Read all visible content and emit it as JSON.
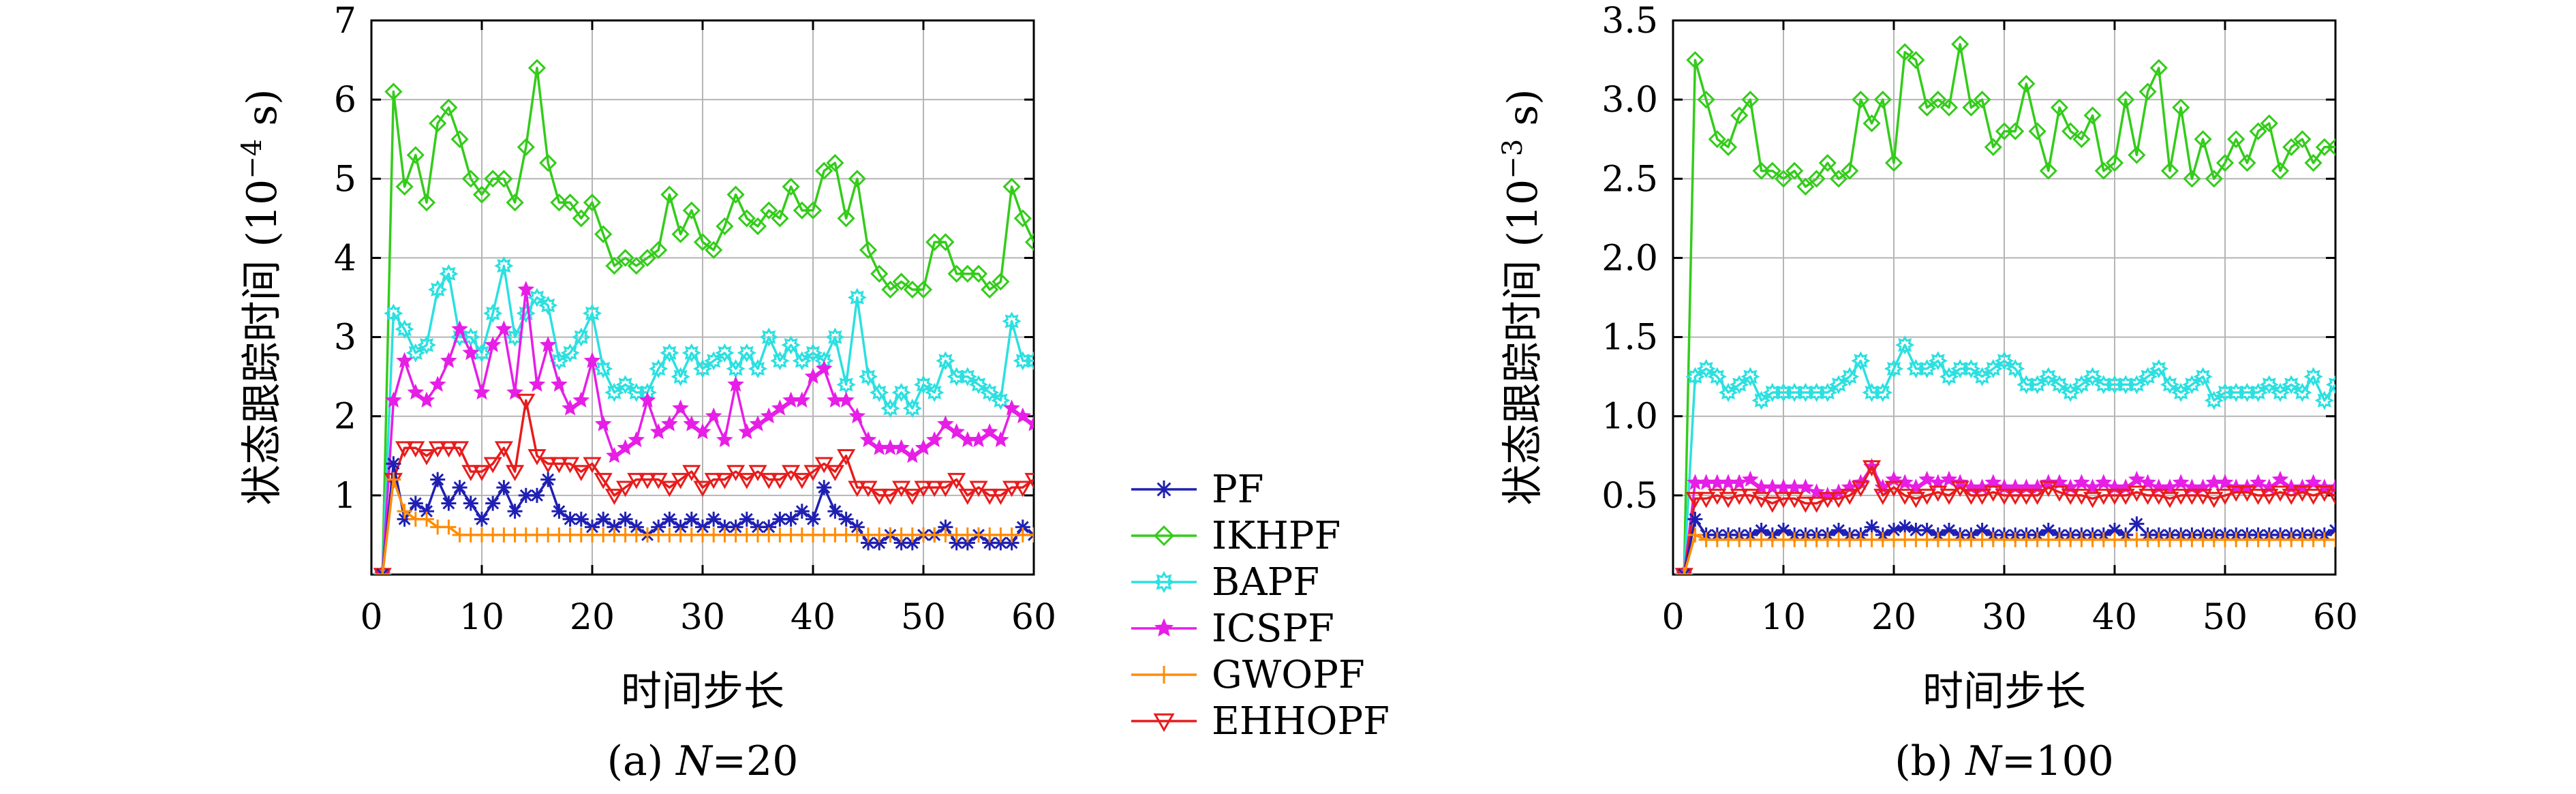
{
  "colors": {
    "PF": "#1f1fb4",
    "IKHPF": "#33cc1a",
    "BAPF": "#2ce0e0",
    "ICSPF": "#e61ee6",
    "GWOPF": "#ff8c00",
    "EHHOPF": "#e81c1c"
  },
  "legend": [
    {
      "name": "PF",
      "color": "#1f1fb4",
      "marker": "star"
    },
    {
      "name": "IKHPF",
      "color": "#33cc1a",
      "marker": "diamond"
    },
    {
      "name": "BAPF",
      "color": "#2ce0e0",
      "marker": "sun"
    },
    {
      "name": "ICSPF",
      "color": "#e61ee6",
      "marker": "star5"
    },
    {
      "name": "GWOPF",
      "color": "#ff8c00",
      "marker": "plus"
    },
    {
      "name": "EHHOPF",
      "color": "#e81c1c",
      "marker": "triangle-down"
    }
  ],
  "chart_data": [
    {
      "type": "line",
      "caption_prefix": "(a) ",
      "caption_var": "N",
      "caption_suffix": "=20",
      "xlabel": "时间步长",
      "ylabel_main": "状态跟踪时间 (10",
      "ylabel_exp": "−4",
      "ylabel_end": " s)",
      "xlim": [
        0,
        60
      ],
      "ylim": [
        0,
        7
      ],
      "xticks": [
        0,
        10,
        20,
        30,
        40,
        50,
        60
      ],
      "yticks": [
        1,
        2,
        3,
        4,
        5,
        6,
        7
      ],
      "xtick_labels": [
        "0",
        "10",
        "20",
        "30",
        "40",
        "50",
        "60"
      ],
      "ytick_labels": [
        "1",
        "2",
        "3",
        "4",
        "5",
        "6",
        "7"
      ],
      "grid": true,
      "x": [
        1,
        2,
        3,
        4,
        5,
        6,
        7,
        8,
        9,
        10,
        11,
        12,
        13,
        14,
        15,
        16,
        17,
        18,
        19,
        20,
        21,
        22,
        23,
        24,
        25,
        26,
        27,
        28,
        29,
        30,
        31,
        32,
        33,
        34,
        35,
        36,
        37,
        38,
        39,
        40,
        41,
        42,
        43,
        44,
        45,
        46,
        47,
        48,
        49,
        50,
        51,
        52,
        53,
        54,
        55,
        56,
        57,
        58,
        59,
        60
      ],
      "series": [
        {
          "name": "IKHPF",
          "values": [
            0,
            6.1,
            4.9,
            5.3,
            4.7,
            5.7,
            5.9,
            5.5,
            5.0,
            4.8,
            5.0,
            5.0,
            4.7,
            5.4,
            6.4,
            5.2,
            4.7,
            4.7,
            4.5,
            4.7,
            4.3,
            3.9,
            4.0,
            3.9,
            4.0,
            4.1,
            4.8,
            4.3,
            4.6,
            4.2,
            4.1,
            4.4,
            4.8,
            4.5,
            4.4,
            4.6,
            4.5,
            4.9,
            4.6,
            4.6,
            5.1,
            5.2,
            4.5,
            5.0,
            4.1,
            3.8,
            3.6,
            3.7,
            3.6,
            3.6,
            4.2,
            4.2,
            3.8,
            3.8,
            3.8,
            3.6,
            3.7,
            4.9,
            4.5,
            4.2
          ]
        },
        {
          "name": "BAPF",
          "values": [
            0,
            3.3,
            3.1,
            2.8,
            2.9,
            3.6,
            3.8,
            3.0,
            3.0,
            2.8,
            3.3,
            3.9,
            3.0,
            3.3,
            3.5,
            3.4,
            2.7,
            2.8,
            3.0,
            3.3,
            2.6,
            2.3,
            2.4,
            2.3,
            2.3,
            2.6,
            2.8,
            2.5,
            2.8,
            2.6,
            2.7,
            2.8,
            2.6,
            2.8,
            2.6,
            3.0,
            2.7,
            2.9,
            2.7,
            2.8,
            2.7,
            3.0,
            2.4,
            3.5,
            2.5,
            2.3,
            2.1,
            2.3,
            2.1,
            2.4,
            2.3,
            2.7,
            2.5,
            2.5,
            2.4,
            2.3,
            2.2,
            3.2,
            2.7,
            2.7
          ]
        },
        {
          "name": "ICSPF",
          "values": [
            0,
            2.2,
            2.7,
            2.3,
            2.2,
            2.4,
            2.7,
            3.1,
            2.8,
            2.3,
            2.9,
            3.1,
            2.3,
            3.6,
            2.4,
            2.9,
            2.4,
            2.1,
            2.2,
            2.7,
            1.9,
            1.5,
            1.6,
            1.7,
            2.2,
            1.8,
            1.9,
            2.1,
            1.9,
            1.8,
            2.0,
            1.7,
            2.4,
            1.8,
            1.9,
            2.0,
            2.1,
            2.2,
            2.2,
            2.5,
            2.6,
            2.2,
            2.2,
            2.0,
            1.7,
            1.6,
            1.6,
            1.6,
            1.5,
            1.6,
            1.7,
            1.9,
            1.8,
            1.7,
            1.7,
            1.8,
            1.7,
            2.1,
            2.0,
            1.9
          ]
        },
        {
          "name": "EHHOPF",
          "values": [
            0,
            1.2,
            1.6,
            1.6,
            1.5,
            1.6,
            1.6,
            1.6,
            1.3,
            1.3,
            1.4,
            1.6,
            1.3,
            2.2,
            1.5,
            1.4,
            1.4,
            1.4,
            1.3,
            1.4,
            1.2,
            1.0,
            1.1,
            1.2,
            1.2,
            1.2,
            1.1,
            1.2,
            1.3,
            1.1,
            1.2,
            1.2,
            1.3,
            1.2,
            1.3,
            1.2,
            1.2,
            1.3,
            1.2,
            1.3,
            1.4,
            1.3,
            1.5,
            1.1,
            1.1,
            1.0,
            1.0,
            1.1,
            1.0,
            1.1,
            1.1,
            1.1,
            1.2,
            1.0,
            1.1,
            1.0,
            1.0,
            1.1,
            1.1,
            1.2
          ]
        },
        {
          "name": "PF",
          "values": [
            0,
            1.4,
            0.7,
            0.9,
            0.8,
            1.2,
            0.9,
            1.1,
            0.9,
            0.7,
            0.9,
            1.1,
            0.8,
            1.0,
            1.0,
            1.2,
            0.8,
            0.7,
            0.7,
            0.6,
            0.7,
            0.6,
            0.7,
            0.6,
            0.5,
            0.6,
            0.7,
            0.6,
            0.7,
            0.6,
            0.7,
            0.6,
            0.6,
            0.7,
            0.6,
            0.6,
            0.7,
            0.7,
            0.8,
            0.7,
            1.1,
            0.8,
            0.7,
            0.6,
            0.4,
            0.4,
            0.5,
            0.4,
            0.4,
            0.5,
            0.5,
            0.6,
            0.4,
            0.4,
            0.5,
            0.4,
            0.4,
            0.4,
            0.6,
            0.5
          ]
        },
        {
          "name": "GWOPF",
          "values": [
            0,
            1.2,
            0.8,
            0.7,
            0.7,
            0.6,
            0.6,
            0.5,
            0.5,
            0.5,
            0.5,
            0.5,
            0.5,
            0.5,
            0.5,
            0.5,
            0.5,
            0.5,
            0.5,
            0.5,
            0.5,
            0.5,
            0.5,
            0.5,
            0.5,
            0.5,
            0.5,
            0.5,
            0.5,
            0.5,
            0.5,
            0.5,
            0.5,
            0.5,
            0.5,
            0.5,
            0.5,
            0.5,
            0.5,
            0.5,
            0.5,
            0.5,
            0.5,
            0.5,
            0.5,
            0.5,
            0.5,
            0.5,
            0.5,
            0.5,
            0.5,
            0.5,
            0.5,
            0.5,
            0.5,
            0.5,
            0.5,
            0.5,
            0.5,
            0.5
          ]
        }
      ]
    },
    {
      "type": "line",
      "caption_prefix": "(b) ",
      "caption_var": "N",
      "caption_suffix": "=100",
      "xlabel": "时间步长",
      "ylabel_main": "状态跟踪时间 (10",
      "ylabel_exp": "−3",
      "ylabel_end": " s)",
      "xlim": [
        0,
        60
      ],
      "ylim": [
        0,
        3.5
      ],
      "xticks": [
        0,
        10,
        20,
        30,
        40,
        50,
        60
      ],
      "yticks": [
        0.5,
        1.0,
        1.5,
        2.0,
        2.5,
        3.0,
        3.5
      ],
      "xtick_labels": [
        "0",
        "10",
        "20",
        "30",
        "40",
        "50",
        "60"
      ],
      "ytick_labels": [
        "0.5",
        "1.0",
        "1.5",
        "2.0",
        "2.5",
        "3.0",
        "3.5"
      ],
      "grid": true,
      "x": [
        1,
        2,
        3,
        4,
        5,
        6,
        7,
        8,
        9,
        10,
        11,
        12,
        13,
        14,
        15,
        16,
        17,
        18,
        19,
        20,
        21,
        22,
        23,
        24,
        25,
        26,
        27,
        28,
        29,
        30,
        31,
        32,
        33,
        34,
        35,
        36,
        37,
        38,
        39,
        40,
        41,
        42,
        43,
        44,
        45,
        46,
        47,
        48,
        49,
        50,
        51,
        52,
        53,
        54,
        55,
        56,
        57,
        58,
        59,
        60
      ],
      "series": [
        {
          "name": "IKHPF",
          "values": [
            0,
            3.25,
            3.0,
            2.75,
            2.7,
            2.9,
            3.0,
            2.55,
            2.55,
            2.5,
            2.55,
            2.45,
            2.5,
            2.6,
            2.5,
            2.55,
            3.0,
            2.85,
            3.0,
            2.6,
            3.3,
            3.25,
            2.95,
            3.0,
            2.95,
            3.35,
            2.95,
            3.0,
            2.7,
            2.8,
            2.8,
            3.1,
            2.8,
            2.55,
            2.95,
            2.8,
            2.75,
            2.9,
            2.55,
            2.6,
            3.0,
            2.65,
            3.05,
            3.2,
            2.55,
            2.95,
            2.5,
            2.75,
            2.5,
            2.6,
            2.75,
            2.6,
            2.8,
            2.85,
            2.55,
            2.7,
            2.75,
            2.6,
            2.7,
            2.7
          ]
        },
        {
          "name": "BAPF",
          "values": [
            0,
            1.25,
            1.3,
            1.25,
            1.15,
            1.2,
            1.25,
            1.1,
            1.15,
            1.15,
            1.15,
            1.15,
            1.15,
            1.15,
            1.2,
            1.25,
            1.35,
            1.15,
            1.15,
            1.3,
            1.45,
            1.3,
            1.3,
            1.35,
            1.25,
            1.3,
            1.3,
            1.25,
            1.3,
            1.35,
            1.3,
            1.2,
            1.2,
            1.25,
            1.2,
            1.15,
            1.2,
            1.25,
            1.2,
            1.2,
            1.2,
            1.2,
            1.25,
            1.3,
            1.2,
            1.15,
            1.2,
            1.25,
            1.1,
            1.15,
            1.15,
            1.15,
            1.15,
            1.2,
            1.15,
            1.2,
            1.15,
            1.25,
            1.1,
            1.2
          ]
        },
        {
          "name": "ICSPF",
          "values": [
            0,
            0.58,
            0.58,
            0.58,
            0.58,
            0.58,
            0.6,
            0.55,
            0.55,
            0.55,
            0.55,
            0.55,
            0.52,
            0.5,
            0.52,
            0.55,
            0.58,
            0.68,
            0.55,
            0.6,
            0.58,
            0.55,
            0.6,
            0.58,
            0.6,
            0.58,
            0.55,
            0.55,
            0.58,
            0.55,
            0.55,
            0.55,
            0.55,
            0.58,
            0.58,
            0.55,
            0.58,
            0.55,
            0.58,
            0.55,
            0.55,
            0.6,
            0.58,
            0.55,
            0.55,
            0.58,
            0.55,
            0.55,
            0.58,
            0.58,
            0.55,
            0.55,
            0.58,
            0.55,
            0.6,
            0.55,
            0.55,
            0.58,
            0.55,
            0.55
          ]
        },
        {
          "name": "EHHOPF",
          "values": [
            0,
            0.48,
            0.48,
            0.5,
            0.48,
            0.5,
            0.5,
            0.48,
            0.45,
            0.48,
            0.48,
            0.45,
            0.45,
            0.48,
            0.48,
            0.5,
            0.55,
            0.68,
            0.5,
            0.55,
            0.5,
            0.48,
            0.5,
            0.52,
            0.5,
            0.55,
            0.5,
            0.5,
            0.52,
            0.5,
            0.5,
            0.5,
            0.5,
            0.55,
            0.52,
            0.5,
            0.5,
            0.48,
            0.5,
            0.5,
            0.5,
            0.52,
            0.5,
            0.5,
            0.48,
            0.5,
            0.5,
            0.5,
            0.48,
            0.5,
            0.52,
            0.52,
            0.5,
            0.5,
            0.52,
            0.5,
            0.52,
            0.5,
            0.52,
            0.5
          ]
        },
        {
          "name": "PF",
          "values": [
            0,
            0.35,
            0.25,
            0.25,
            0.25,
            0.25,
            0.25,
            0.28,
            0.25,
            0.28,
            0.25,
            0.25,
            0.25,
            0.25,
            0.28,
            0.25,
            0.25,
            0.3,
            0.25,
            0.28,
            0.3,
            0.28,
            0.28,
            0.25,
            0.28,
            0.25,
            0.25,
            0.28,
            0.25,
            0.25,
            0.25,
            0.25,
            0.25,
            0.28,
            0.25,
            0.25,
            0.25,
            0.25,
            0.25,
            0.28,
            0.25,
            0.32,
            0.25,
            0.25,
            0.25,
            0.25,
            0.25,
            0.25,
            0.25,
            0.25,
            0.25,
            0.25,
            0.25,
            0.25,
            0.25,
            0.25,
            0.25,
            0.25,
            0.25,
            0.28
          ]
        },
        {
          "name": "GWOPF",
          "values": [
            0,
            0.25,
            0.22,
            0.22,
            0.22,
            0.22,
            0.22,
            0.22,
            0.22,
            0.22,
            0.22,
            0.22,
            0.22,
            0.22,
            0.22,
            0.22,
            0.22,
            0.22,
            0.22,
            0.22,
            0.22,
            0.22,
            0.22,
            0.22,
            0.22,
            0.22,
            0.22,
            0.22,
            0.22,
            0.22,
            0.22,
            0.22,
            0.22,
            0.22,
            0.22,
            0.22,
            0.22,
            0.22,
            0.22,
            0.22,
            0.22,
            0.22,
            0.22,
            0.22,
            0.22,
            0.22,
            0.22,
            0.22,
            0.22,
            0.22,
            0.22,
            0.22,
            0.22,
            0.22,
            0.22,
            0.22,
            0.22,
            0.22,
            0.22,
            0.22
          ]
        }
      ]
    }
  ]
}
